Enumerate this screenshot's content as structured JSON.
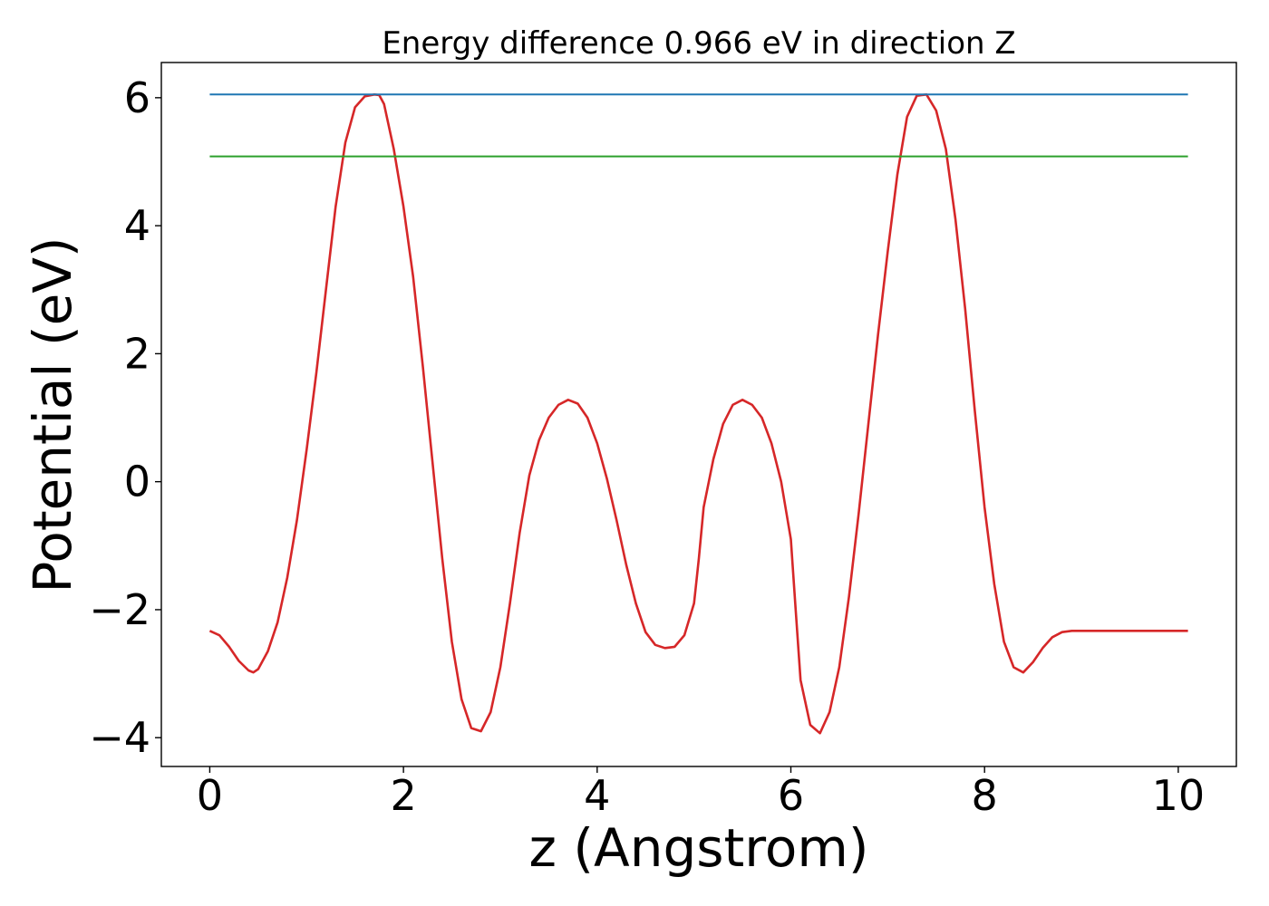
{
  "chart_data": {
    "type": "line",
    "title": "Energy difference 0.966 eV in direction Z",
    "xlabel": "z (Angstrom)",
    "ylabel": "Potential (eV)",
    "xlim": [
      -0.5,
      10.6
    ],
    "ylim": [
      -4.45,
      6.55
    ],
    "xticks": [
      0,
      2,
      4,
      6,
      8,
      10
    ],
    "yticks": [
      -4,
      -2,
      0,
      2,
      4,
      6
    ],
    "xtick_labels": [
      "0",
      "2",
      "4",
      "6",
      "8",
      "10"
    ],
    "ytick_labels": [
      "−4",
      "−2",
      "0",
      "2",
      "4",
      "6"
    ],
    "grid": false,
    "legend": "none",
    "series": [
      {
        "color": "#d62728",
        "x": [
          0.0,
          0.1,
          0.2,
          0.3,
          0.4,
          0.45,
          0.5,
          0.6,
          0.7,
          0.8,
          0.9,
          1.0,
          1.1,
          1.2,
          1.3,
          1.4,
          1.5,
          1.6,
          1.7,
          1.75,
          1.8,
          1.9,
          2.0,
          2.1,
          2.2,
          2.3,
          2.4,
          2.5,
          2.6,
          2.7,
          2.8,
          2.9,
          3.0,
          3.1,
          3.2,
          3.3,
          3.4,
          3.5,
          3.6,
          3.7,
          3.8,
          3.9,
          4.0,
          4.1,
          4.2,
          4.3,
          4.4,
          4.5,
          4.6,
          4.7,
          4.8,
          4.9,
          5.0,
          5.05,
          5.1,
          5.2,
          5.3,
          5.4,
          5.5,
          5.6,
          5.7,
          5.8,
          5.9,
          6.0,
          6.05,
          6.1,
          6.2,
          6.3,
          6.4,
          6.5,
          6.6,
          6.7,
          6.8,
          6.9,
          7.0,
          7.1,
          7.2,
          7.3,
          7.4,
          7.5,
          7.6,
          7.7,
          7.8,
          7.9,
          8.0,
          8.1,
          8.2,
          8.3,
          8.4,
          8.5,
          8.6,
          8.7,
          8.8,
          8.9,
          9.0,
          9.1,
          9.2,
          9.3,
          9.4,
          9.5,
          9.6,
          9.7,
          9.8,
          9.9,
          10.0,
          10.1
        ],
        "y": [
          -2.33,
          -2.4,
          -2.58,
          -2.8,
          -2.95,
          -2.98,
          -2.93,
          -2.65,
          -2.2,
          -1.5,
          -0.6,
          0.5,
          1.7,
          3.0,
          4.3,
          5.3,
          5.85,
          6.02,
          6.05,
          6.04,
          5.9,
          5.2,
          4.3,
          3.2,
          1.8,
          0.3,
          -1.2,
          -2.5,
          -3.4,
          -3.85,
          -3.9,
          -3.6,
          -2.9,
          -1.9,
          -0.8,
          0.1,
          0.65,
          1.0,
          1.2,
          1.28,
          1.22,
          1.0,
          0.6,
          0.05,
          -0.6,
          -1.3,
          -1.9,
          -2.35,
          -2.55,
          -2.6,
          -2.58,
          -2.4,
          -1.9,
          -1.2,
          -0.4,
          0.35,
          0.9,
          1.2,
          1.28,
          1.2,
          1.0,
          0.6,
          0.0,
          -0.9,
          -2.0,
          -3.1,
          -3.8,
          -3.93,
          -3.6,
          -2.9,
          -1.8,
          -0.5,
          0.9,
          2.3,
          3.6,
          4.8,
          5.7,
          6.03,
          6.05,
          5.8,
          5.2,
          4.1,
          2.7,
          1.1,
          -0.4,
          -1.6,
          -2.5,
          -2.9,
          -2.98,
          -2.82,
          -2.6,
          -2.43,
          -2.35,
          -2.33,
          -2.33,
          -2.33,
          -2.33,
          -2.33,
          -2.33,
          -2.33,
          -2.33,
          -2.33,
          -2.33,
          -2.33,
          -2.33,
          -2.33
        ]
      },
      {
        "color": "#1f77b4",
        "x": [
          0,
          10.1
        ],
        "y": [
          6.05,
          6.05
        ]
      },
      {
        "color": "#2ca02c",
        "x": [
          0,
          10.1
        ],
        "y": [
          5.084,
          5.084
        ]
      }
    ]
  }
}
